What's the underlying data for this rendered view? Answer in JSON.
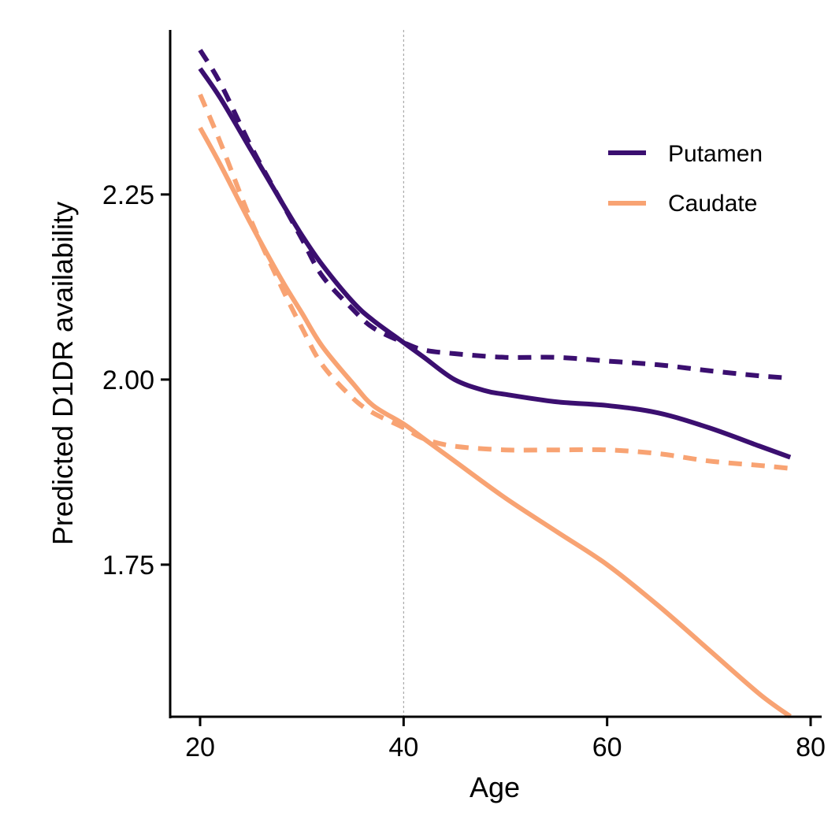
{
  "chart_data": {
    "type": "line",
    "title": "",
    "xlabel": "Age",
    "ylabel": "Predicted D1DR availability",
    "xlim": [
      16.5,
      80.5
    ],
    "ylim": [
      1.535,
      2.485
    ],
    "x_ticks": [
      20,
      40,
      60,
      80
    ],
    "x_tick_labels": [
      "20",
      "40",
      "60",
      "80"
    ],
    "y_ticks": [
      1.75,
      2.0,
      2.25
    ],
    "y_tick_labels": [
      "1.75",
      "2.00",
      "2.25"
    ],
    "grid": false,
    "reference_line": {
      "x": 40,
      "style": "dotted"
    },
    "legend": {
      "position": "top-right",
      "entries": [
        {
          "label": "Putamen",
          "color": "#3b0f70"
        },
        {
          "label": "Caudate",
          "color": "#f8a373"
        }
      ]
    },
    "series": [
      {
        "name": "Putamen",
        "style": "solid",
        "color": "#3b0f70",
        "x": [
          20,
          22,
          25,
          28,
          30,
          32,
          35,
          37,
          40,
          42,
          45,
          48,
          50,
          55,
          60,
          65,
          70,
          75,
          78
        ],
        "values": [
          2.42,
          2.38,
          2.31,
          2.24,
          2.195,
          2.155,
          2.105,
          2.08,
          2.05,
          2.03,
          2.0,
          1.985,
          1.98,
          1.97,
          1.965,
          1.955,
          1.935,
          1.91,
          1.895
        ]
      },
      {
        "name": "Putamen",
        "style": "dashed",
        "color": "#3b0f70",
        "x": [
          20,
          22,
          25,
          28,
          30,
          32,
          35,
          37,
          40,
          42,
          45,
          50,
          55,
          60,
          65,
          70,
          75,
          78
        ],
        "values": [
          2.445,
          2.4,
          2.315,
          2.24,
          2.19,
          2.14,
          2.095,
          2.07,
          2.05,
          2.04,
          2.035,
          2.03,
          2.03,
          2.025,
          2.02,
          2.012,
          2.005,
          2.002
        ]
      },
      {
        "name": "Caudate",
        "style": "solid",
        "color": "#f8a373",
        "x": [
          20,
          22,
          25,
          28,
          30,
          32,
          35,
          37,
          40,
          42,
          45,
          50,
          55,
          60,
          65,
          70,
          75,
          78
        ],
        "values": [
          2.34,
          2.29,
          2.21,
          2.135,
          2.09,
          2.045,
          1.995,
          1.965,
          1.94,
          1.92,
          1.89,
          1.84,
          1.795,
          1.75,
          1.695,
          1.635,
          1.575,
          1.545
        ]
      },
      {
        "name": "Caudate",
        "style": "dashed",
        "color": "#f8a373",
        "x": [
          20,
          22,
          25,
          28,
          30,
          32,
          35,
          37,
          40,
          42,
          45,
          50,
          55,
          60,
          65,
          70,
          75,
          78
        ],
        "values": [
          2.385,
          2.32,
          2.215,
          2.125,
          2.07,
          2.02,
          1.975,
          1.955,
          1.935,
          1.92,
          1.91,
          1.905,
          1.905,
          1.905,
          1.9,
          1.89,
          1.884,
          1.88
        ]
      }
    ]
  }
}
